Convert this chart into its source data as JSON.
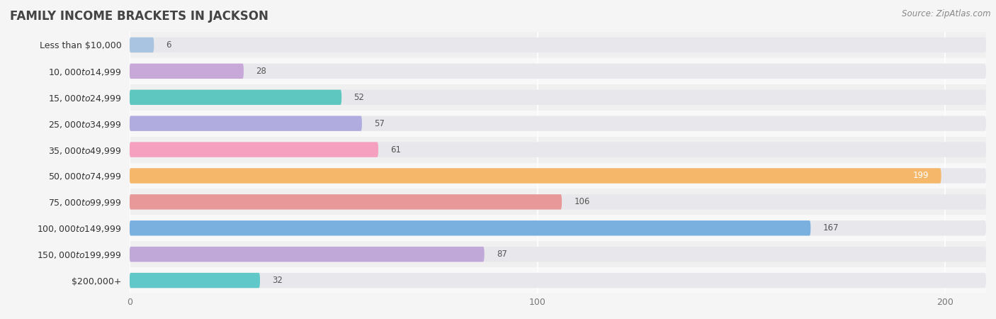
{
  "title": "FAMILY INCOME BRACKETS IN JACKSON",
  "source": "Source: ZipAtlas.com",
  "categories": [
    "Less than $10,000",
    "$10,000 to $14,999",
    "$15,000 to $24,999",
    "$25,000 to $34,999",
    "$35,000 to $49,999",
    "$50,000 to $74,999",
    "$75,000 to $99,999",
    "$100,000 to $149,999",
    "$150,000 to $199,999",
    "$200,000+"
  ],
  "values": [
    6,
    28,
    52,
    57,
    61,
    199,
    106,
    167,
    87,
    32
  ],
  "bar_colors": [
    "#a8c4e0",
    "#c8a8d8",
    "#5ec8c0",
    "#b0ace0",
    "#f5a0be",
    "#f5b86a",
    "#e89898",
    "#7ab0e0",
    "#c0a8d8",
    "#60c8c8"
  ],
  "bar_bg_color": "#e8e8ec",
  "bg_color": "#f5f5f5",
  "row_bg_colors": [
    "#f0f0f0",
    "#f8f8f8"
  ],
  "xlim_max": 210,
  "xticks": [
    0,
    100,
    200
  ],
  "title_fontsize": 12,
  "label_fontsize": 9,
  "value_fontsize": 8.5,
  "source_fontsize": 8.5,
  "value_inside_color": "white",
  "value_outside_color": "#555555",
  "inside_threshold": 185
}
